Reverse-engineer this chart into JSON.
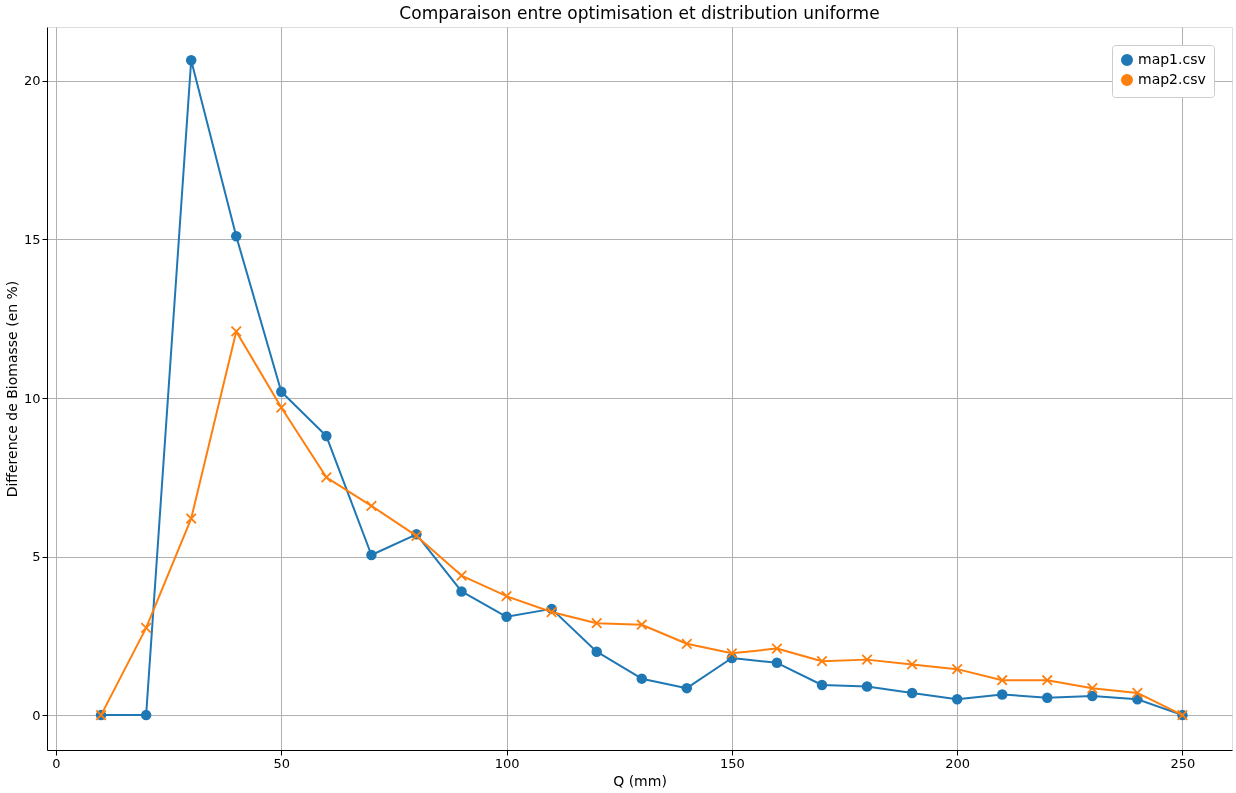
{
  "chart_data": {
    "type": "line",
    "title": "Comparaison entre optimisation et distribution uniforme",
    "xlabel": "Q (mm)",
    "ylabel": "Difference de Biomasse (en %)",
    "x": [
      10,
      20,
      30,
      40,
      50,
      60,
      70,
      80,
      90,
      100,
      110,
      120,
      130,
      140,
      150,
      160,
      170,
      180,
      190,
      200,
      210,
      220,
      230,
      240,
      250
    ],
    "series": [
      {
        "name": "map1.csv",
        "color": "#1f77b4",
        "marker": "circle",
        "values": [
          0,
          0,
          20.65,
          15.1,
          10.2,
          8.8,
          5.05,
          5.7,
          3.9,
          3.1,
          3.35,
          2.0,
          1.15,
          0.85,
          1.8,
          1.65,
          0.95,
          0.9,
          0.7,
          0.5,
          0.65,
          0.55,
          0.6,
          0.5,
          0
        ]
      },
      {
        "name": "map2.csv",
        "color": "#ff7f0e",
        "marker": "cross",
        "values": [
          0,
          2.75,
          6.2,
          12.1,
          9.7,
          7.5,
          6.6,
          5.65,
          4.4,
          3.75,
          3.25,
          2.9,
          2.85,
          2.25,
          1.95,
          2.1,
          1.7,
          1.75,
          1.6,
          1.45,
          1.1,
          1.1,
          0.85,
          0.7,
          0
        ]
      }
    ],
    "xlim": [
      -2,
      261
    ],
    "ylim": [
      -1.1,
      21.7
    ],
    "xticks": [
      0,
      50,
      100,
      150,
      200,
      250
    ],
    "yticks": [
      0,
      5,
      10,
      15,
      20
    ],
    "grid": true,
    "legend": "top right",
    "line_style": "solid"
  }
}
